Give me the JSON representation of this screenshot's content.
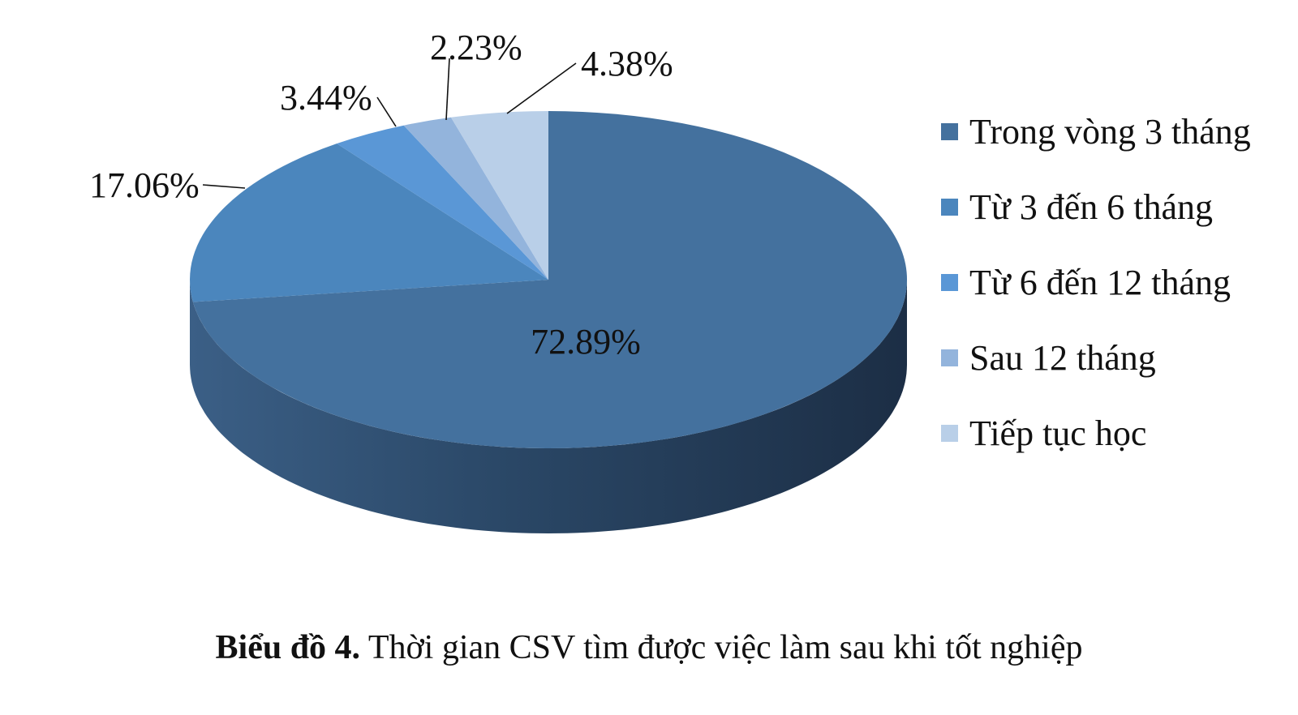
{
  "chart_data": {
    "type": "pie",
    "style": "3d",
    "categories": [
      "Trong vòng 3 tháng",
      "Từ 3 đến 6 tháng",
      "Từ 6 đến 12 tháng",
      "Sau 12 tháng",
      "Tiếp tục học"
    ],
    "values": [
      72.89,
      17.06,
      3.44,
      2.23,
      4.38
    ],
    "labels": [
      "72.89%",
      "17.06%",
      "3.44%",
      "2.23%",
      "4.38%"
    ],
    "colors": [
      "#44719e",
      "#4b86bd",
      "#5a97d6",
      "#93b4dc",
      "#b9cfe8"
    ],
    "legend_position": "right"
  },
  "caption": {
    "prefix": "Biểu đồ 4.",
    "text": "Thời gian CSV tìm được việc làm sau khi tốt nghiệp"
  }
}
